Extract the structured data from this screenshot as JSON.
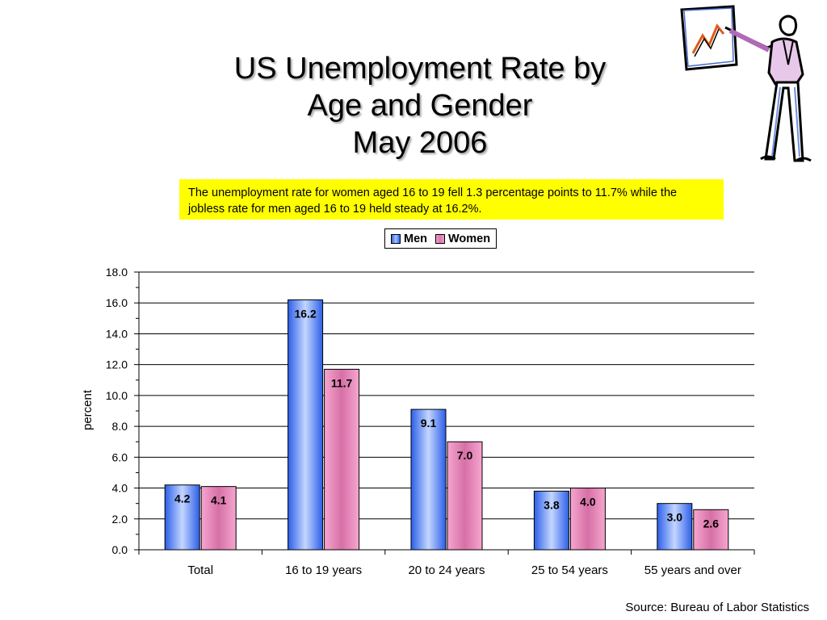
{
  "title": {
    "line1": "US Unemployment Rate by",
    "line2": "Age and Gender",
    "line3": "May 2006"
  },
  "callout": {
    "text": "The unemployment rate for women aged 16 to 19 fell 1.3 percentage points to 11.7% while the jobless rate for men aged 16 to 19 held steady at 16.2%."
  },
  "source": "Source: Bureau of Labor Statistics",
  "colors": {
    "men": "#3a6cf0",
    "men_light": "#bcd0ff",
    "women": "#f28ec0",
    "women_dark": "#d86aa2",
    "callout_bg": "#ffff00"
  },
  "chart_data": {
    "type": "bar",
    "title": "",
    "xlabel": "",
    "ylabel": "percent",
    "ylim": [
      0,
      18
    ],
    "y_ticks": [
      "0.0",
      "2.0",
      "4.0",
      "6.0",
      "8.0",
      "10.0",
      "12.0",
      "14.0",
      "16.0",
      "18.0"
    ],
    "grid": true,
    "legend_position": "top-center",
    "categories": [
      "Total",
      "16 to 19 years",
      "20 to 24 years",
      "25 to 54 years",
      "55 years and over"
    ],
    "series": [
      {
        "name": "Men",
        "values": [
          4.2,
          16.2,
          9.1,
          3.8,
          3.0
        ],
        "labels": [
          "4.2",
          "16.2",
          "9.1",
          "3.8",
          "3.0"
        ]
      },
      {
        "name": "Women",
        "values": [
          4.1,
          11.7,
          7.0,
          4.0,
          2.6
        ],
        "labels": [
          "4.1",
          "11.7",
          "7.0",
          "4.0",
          "2.6"
        ]
      }
    ]
  }
}
